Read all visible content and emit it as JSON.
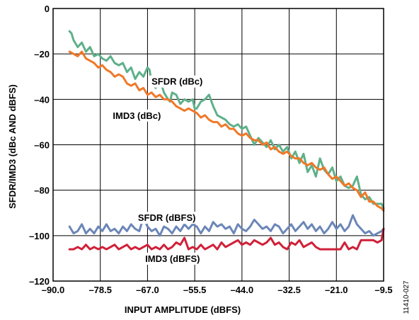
{
  "chart_data": {
    "type": "line",
    "xlabel": "INPUT AMPLITUDE (dBFS)",
    "ylabel": "SFDR/IMD3 (dBc AND dBFS)",
    "xlim": [
      -90.0,
      -9.5
    ],
    "ylim": [
      -120,
      0
    ],
    "xticks": [
      -90.0,
      -78.5,
      -67.0,
      -55.5,
      -44.0,
      -32.5,
      -21.0,
      -9.5
    ],
    "xtick_labels": [
      "–90.0",
      "–78.5",
      "–67.0",
      "–55.5",
      "–44.0",
      "–32.5",
      "–21.0",
      "–9.5"
    ],
    "yticks": [
      0,
      -20,
      -40,
      -60,
      -80,
      -100,
      -120
    ],
    "ytick_labels": [
      "0",
      "–20",
      "–40",
      "–60",
      "–80",
      "–100",
      "–120"
    ],
    "grid": true,
    "figure_id": "11410-027",
    "annotations": [
      {
        "text": "SFDR (dBc)",
        "x": -59.8,
        "y": -32
      },
      {
        "text": "IMD3 (dBc)",
        "x": -69.6,
        "y": -47
      },
      {
        "text": "SFDR (dBFS)",
        "x": -62.3,
        "y": -92
      },
      {
        "text": "IMD3 (dBFS)",
        "x": -60.9,
        "y": -110
      }
    ],
    "series": [
      {
        "name": "SFDR (dBc)",
        "color": "#5fb08a",
        "x": [
          -86.0,
          -85.5,
          -85.0,
          -84.0,
          -83.0,
          -82.0,
          -81.0,
          -80.0,
          -79.0,
          -78.0,
          -77.0,
          -76.0,
          -75.0,
          -74.0,
          -73.0,
          -72.0,
          -71.0,
          -70.0,
          -69.0,
          -68.0,
          -67.0,
          -66.5,
          -66.0,
          -65.0,
          -64.0,
          -63.0,
          -62.0,
          -61.5,
          -61.0,
          -60.0,
          -59.0,
          -58.0,
          -57.0,
          -56.0,
          -55.5,
          -55.0,
          -54.0,
          -53.0,
          -52.0,
          -51.0,
          -50.0,
          -49.0,
          -48.0,
          -47.0,
          -46.0,
          -45.0,
          -44.0,
          -43.0,
          -42.0,
          -41.0,
          -40.0,
          -39.0,
          -38.0,
          -37.0,
          -36.0,
          -35.0,
          -34.0,
          -33.0,
          -32.0,
          -31.0,
          -30.0,
          -29.0,
          -28.0,
          -27.0,
          -26.0,
          -25.0,
          -24.0,
          -23.0,
          -22.0,
          -21.0,
          -20.0,
          -19.0,
          -18.0,
          -17.0,
          -16.0,
          -15.0,
          -14.0,
          -13.0,
          -12.0,
          -11.0,
          -10.0,
          -9.5
        ],
        "values": [
          -10,
          -11,
          -14,
          -17,
          -15,
          -19,
          -17,
          -21,
          -20,
          -22,
          -23,
          -21,
          -24,
          -25,
          -24,
          -28,
          -26,
          -31,
          -28,
          -30,
          -26,
          -27,
          -33,
          -35,
          -31,
          -37,
          -40,
          -41,
          -37,
          -38,
          -42,
          -40,
          -41,
          -40,
          -44,
          -44,
          -41,
          -40,
          -38,
          -43,
          -47,
          -48,
          -49,
          -51,
          -52,
          -51,
          -53,
          -52,
          -56,
          -60,
          -57,
          -59,
          -61,
          -58,
          -62,
          -60,
          -63,
          -61,
          -66,
          -63,
          -68,
          -64,
          -72,
          -69,
          -74,
          -66,
          -71,
          -73,
          -70,
          -76,
          -74,
          -78,
          -79,
          -78,
          -74,
          -82,
          -84,
          -83,
          -86,
          -86,
          -86,
          -88
        ]
      },
      {
        "name": "IMD3 (dBc)",
        "color": "#f07828",
        "x": [
          -86.0,
          -85.0,
          -84.0,
          -83.0,
          -82.0,
          -81.0,
          -80.0,
          -79.0,
          -78.0,
          -77.0,
          -76.0,
          -75.0,
          -74.0,
          -73.0,
          -72.0,
          -71.0,
          -70.0,
          -69.0,
          -68.0,
          -67.0,
          -66.0,
          -65.0,
          -64.0,
          -63.0,
          -62.0,
          -61.0,
          -60.0,
          -59.0,
          -58.0,
          -57.0,
          -56.0,
          -55.0,
          -54.0,
          -53.0,
          -52.0,
          -51.0,
          -50.0,
          -49.0,
          -48.0,
          -47.0,
          -46.0,
          -45.0,
          -44.0,
          -43.0,
          -42.0,
          -41.0,
          -40.0,
          -39.0,
          -38.0,
          -37.0,
          -36.0,
          -35.0,
          -34.0,
          -33.0,
          -32.0,
          -31.0,
          -30.0,
          -29.0,
          -28.0,
          -27.0,
          -26.0,
          -25.0,
          -24.0,
          -23.0,
          -22.0,
          -21.0,
          -20.0,
          -19.0,
          -18.0,
          -17.0,
          -16.0,
          -15.0,
          -14.0,
          -13.0,
          -12.0,
          -11.0,
          -10.0,
          -9.5
        ],
        "values": [
          -19,
          -20,
          -21,
          -19,
          -22,
          -23,
          -24,
          -26,
          -25,
          -27,
          -28,
          -30,
          -29,
          -30,
          -33,
          -34,
          -33,
          -36,
          -35,
          -38,
          -37,
          -39,
          -38,
          -40,
          -40,
          -41,
          -43,
          -44,
          -45,
          -44,
          -45,
          -46,
          -48,
          -47,
          -49,
          -50,
          -50,
          -52,
          -51,
          -53,
          -53,
          -55,
          -56,
          -55,
          -57,
          -58,
          -58,
          -60,
          -59,
          -62,
          -61,
          -63,
          -64,
          -63,
          -65,
          -66,
          -66,
          -68,
          -69,
          -68,
          -70,
          -71,
          -70,
          -73,
          -75,
          -74,
          -76,
          -78,
          -77,
          -79,
          -80,
          -83,
          -81,
          -85,
          -85,
          -87,
          -88,
          -89
        ]
      },
      {
        "name": "SFDR (dBFS)",
        "color": "#6b86b8",
        "x": [
          -86.0,
          -85.0,
          -84.0,
          -83.0,
          -82.0,
          -81.0,
          -80.0,
          -79.0,
          -78.0,
          -77.0,
          -76.0,
          -75.0,
          -74.0,
          -73.0,
          -72.0,
          -71.0,
          -70.0,
          -69.0,
          -68.0,
          -67.0,
          -66.0,
          -65.0,
          -64.0,
          -63.0,
          -62.0,
          -61.0,
          -60.0,
          -59.0,
          -58.0,
          -57.0,
          -56.0,
          -55.0,
          -54.0,
          -53.0,
          -52.0,
          -51.0,
          -50.0,
          -49.0,
          -48.0,
          -47.0,
          -46.0,
          -45.0,
          -44.0,
          -43.0,
          -42.0,
          -41.0,
          -40.0,
          -39.0,
          -38.0,
          -37.0,
          -36.0,
          -35.0,
          -34.0,
          -33.0,
          -32.0,
          -31.0,
          -30.0,
          -29.0,
          -28.0,
          -27.0,
          -26.0,
          -25.0,
          -24.0,
          -23.0,
          -22.0,
          -21.0,
          -20.0,
          -19.0,
          -18.0,
          -17.0,
          -16.0,
          -15.0,
          -14.0,
          -13.0,
          -12.0,
          -11.0,
          -10.0,
          -9.5
        ],
        "values": [
          -96,
          -99,
          -98,
          -95,
          -99,
          -97,
          -99,
          -96,
          -98,
          -95,
          -98,
          -97,
          -99,
          -96,
          -98,
          -95,
          -97,
          -98,
          -92,
          -96,
          -98,
          -97,
          -100,
          -96,
          -97,
          -99,
          -96,
          -98,
          -95,
          -97,
          -95,
          -96,
          -99,
          -96,
          -98,
          -94,
          -96,
          -95,
          -97,
          -96,
          -99,
          -95,
          -97,
          -98,
          -96,
          -93,
          -95,
          -97,
          -96,
          -98,
          -95,
          -96,
          -99,
          -97,
          -95,
          -98,
          -96,
          -94,
          -97,
          -95,
          -98,
          -96,
          -99,
          -97,
          -94,
          -97,
          -95,
          -98,
          -96,
          -91,
          -95,
          -97,
          -99,
          -98,
          -100,
          -99,
          -98,
          -97
        ]
      },
      {
        "name": "IMD3 (dBFS)",
        "color": "#d02038",
        "x": [
          -86.0,
          -85.0,
          -84.0,
          -83.0,
          -82.0,
          -81.0,
          -80.0,
          -79.0,
          -78.0,
          -77.0,
          -76.0,
          -75.0,
          -74.0,
          -73.0,
          -72.0,
          -71.0,
          -70.0,
          -69.0,
          -68.0,
          -67.0,
          -66.0,
          -65.0,
          -64.0,
          -63.0,
          -62.0,
          -61.0,
          -60.0,
          -59.0,
          -58.0,
          -57.0,
          -56.0,
          -55.0,
          -54.0,
          -53.0,
          -52.0,
          -51.0,
          -50.0,
          -49.0,
          -48.0,
          -47.0,
          -46.0,
          -45.0,
          -44.0,
          -43.0,
          -42.0,
          -41.0,
          -40.0,
          -39.0,
          -38.0,
          -37.0,
          -36.0,
          -35.0,
          -34.0,
          -33.0,
          -32.0,
          -31.0,
          -30.0,
          -29.0,
          -28.0,
          -27.0,
          -26.0,
          -25.0,
          -24.0,
          -23.0,
          -22.0,
          -21.0,
          -20.0,
          -19.0,
          -18.0,
          -17.0,
          -16.0,
          -15.0,
          -14.0,
          -13.0,
          -12.0,
          -11.0,
          -10.0,
          -9.5
        ],
        "values": [
          -106,
          -106,
          -105,
          -106,
          -104,
          -106,
          -105,
          -106,
          -105,
          -106,
          -105,
          -104,
          -106,
          -105,
          -104,
          -106,
          -105,
          -106,
          -105,
          -104,
          -106,
          -105,
          -106,
          -104,
          -106,
          -105,
          -103,
          -104,
          -101,
          -106,
          -105,
          -106,
          -104,
          -106,
          -105,
          -104,
          -106,
          -103,
          -105,
          -104,
          -103,
          -102,
          -104,
          -103,
          -104,
          -102,
          -103,
          -104,
          -103,
          -101,
          -104,
          -103,
          -105,
          -106,
          -103,
          -104,
          -102,
          -105,
          -104,
          -103,
          -105,
          -106,
          -106,
          -106,
          -106,
          -106,
          -106,
          -103,
          -106,
          -105,
          -106,
          -102,
          -102,
          -102,
          -102,
          -103,
          -102,
          -97
        ]
      }
    ]
  }
}
